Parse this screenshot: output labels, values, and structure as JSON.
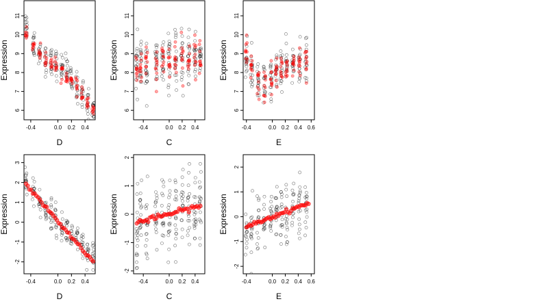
{
  "chart_data": [
    {
      "type": "scatter",
      "xlabel": "D",
      "ylabel": "Expression",
      "xlim": [
        -0.5,
        0.55
      ],
      "ylim": [
        5.5,
        11.8
      ],
      "xticks": [
        -0.4,
        0.0,
        0.2,
        0.4
      ],
      "xtick_labels": [
        "-0.4",
        "0.0",
        "0.2",
        "0.4"
      ],
      "yticks": [
        6,
        7,
        8,
        9,
        10,
        11
      ],
      "ytick_labels": [
        "6",
        "7",
        "8",
        "9",
        "10",
        "11"
      ],
      "series": [
        {
          "kind": "observed",
          "color": "#000000",
          "x_groups": [
            -0.47,
            -0.36,
            -0.27,
            -0.18,
            -0.1,
            -0.03,
            0.06,
            0.13,
            0.2,
            0.28,
            0.36,
            0.44,
            0.52
          ],
          "y_means": [
            10.5,
            9.6,
            9.1,
            8.7,
            8.5,
            8.4,
            8.3,
            8.2,
            7.5,
            7.2,
            6.9,
            6.4,
            6.1
          ],
          "y_spread": 0.7,
          "n_per_group": 14
        },
        {
          "kind": "fitted",
          "color": "#ff0000",
          "x_groups": [
            -0.47,
            -0.36,
            -0.27,
            -0.18,
            -0.1,
            -0.03,
            0.06,
            0.13,
            0.2,
            0.28,
            0.36,
            0.44,
            0.52
          ],
          "y_means": [
            10.0,
            9.5,
            9.0,
            8.7,
            8.5,
            8.3,
            8.1,
            7.8,
            7.5,
            7.2,
            6.8,
            6.4,
            6.0
          ],
          "y_spread": 0.35,
          "n_per_group": 8
        }
      ]
    },
    {
      "type": "scatter",
      "xlabel": "C",
      "ylabel": "Expression",
      "xlim": [
        -0.55,
        0.55
      ],
      "ylim": [
        5.5,
        11.8
      ],
      "xticks": [
        -0.4,
        0.0,
        0.2,
        0.4
      ],
      "xtick_labels": [
        "-0.4",
        "0.0",
        "0.2",
        "0.4"
      ],
      "yticks": [
        6,
        7,
        8,
        9,
        10,
        11
      ],
      "ytick_labels": [
        "6",
        "7",
        "8",
        "9",
        "10",
        "11"
      ],
      "series": [
        {
          "kind": "observed",
          "color": "#000000",
          "x_groups": [
            -0.5,
            -0.44,
            -0.35,
            -0.2,
            -0.1,
            0.0,
            0.1,
            0.2,
            0.3,
            0.4,
            0.48
          ],
          "y_means": [
            8.3,
            8.4,
            8.3,
            8.4,
            8.5,
            8.5,
            8.6,
            8.6,
            8.7,
            8.8,
            8.9
          ],
          "y_spread": 1.3,
          "n_per_group": 18
        },
        {
          "kind": "fitted",
          "color": "#ff0000",
          "x_groups": [
            -0.5,
            -0.44,
            -0.35,
            -0.2,
            -0.1,
            0.0,
            0.1,
            0.2,
            0.3,
            0.4,
            0.48
          ],
          "y_means": [
            8.2,
            8.3,
            8.3,
            8.4,
            8.5,
            8.5,
            8.6,
            8.6,
            8.7,
            8.8,
            8.9
          ],
          "y_spread": 0.9,
          "n_per_group": 10
        }
      ]
    },
    {
      "type": "scatter",
      "xlabel": "E",
      "ylabel": "Expression",
      "xlim": [
        -0.45,
        0.65
      ],
      "ylim": [
        5.5,
        11.8
      ],
      "xticks": [
        -0.4,
        0.0,
        0.2,
        0.4,
        0.6
      ],
      "xtick_labels": [
        "-0.4",
        "0.0",
        "0.2",
        "0.4",
        "0.6"
      ],
      "yticks": [
        6,
        7,
        8,
        9,
        10,
        11
      ],
      "ytick_labels": [
        "6",
        "7",
        "8",
        "9",
        "10",
        "11"
      ],
      "series": [
        {
          "kind": "observed",
          "color": "#000000",
          "x_groups": [
            -0.4,
            -0.32,
            -0.22,
            -0.12,
            -0.02,
            0.06,
            0.14,
            0.22,
            0.32,
            0.42,
            0.52
          ],
          "y_means": [
            8.6,
            8.2,
            7.6,
            7.4,
            7.6,
            8.0,
            8.3,
            8.3,
            8.4,
            8.6,
            8.7
          ],
          "y_spread": 1.0,
          "n_per_group": 16
        },
        {
          "kind": "fitted",
          "color": "#ff0000",
          "x_groups": [
            -0.4,
            -0.32,
            -0.22,
            -0.12,
            -0.02,
            0.06,
            0.14,
            0.22,
            0.32,
            0.42,
            0.52
          ],
          "y_means": [
            9.0,
            8.2,
            7.5,
            7.3,
            7.5,
            8.0,
            8.3,
            8.2,
            8.4,
            8.6,
            8.7
          ],
          "y_spread": 0.8,
          "n_per_group": 10
        }
      ]
    },
    {
      "type": "scatter",
      "xlabel": "D",
      "ylabel": "Expression",
      "xlim": [
        -0.5,
        0.55
      ],
      "ylim": [
        -2.6,
        3.4
      ],
      "xticks": [
        -0.4,
        0.0,
        0.2,
        0.4
      ],
      "xtick_labels": [
        "-0.4",
        "0.0",
        "0.2",
        "0.4"
      ],
      "yticks": [
        -2,
        -1,
        0,
        1,
        2,
        3
      ],
      "ytick_labels": [
        "-2",
        "-1",
        "0",
        "1",
        "2",
        "3"
      ],
      "series": [
        {
          "kind": "observed",
          "color": "#000000",
          "x_groups": [
            -0.47,
            -0.36,
            -0.27,
            -0.18,
            -0.1,
            -0.03,
            0.06,
            0.13,
            0.2,
            0.28,
            0.36,
            0.44,
            0.52
          ],
          "y_means": [
            2.2,
            1.5,
            1.0,
            0.6,
            0.3,
            0.2,
            -0.2,
            -0.4,
            -0.7,
            -1.0,
            -1.3,
            -1.7,
            -1.9
          ],
          "y_spread": 0.7,
          "n_per_group": 14
        },
        {
          "kind": "fitted_line",
          "color": "#ff0000",
          "x_start": -0.47,
          "x_end": 0.52,
          "y_start": 1.9,
          "y_end": -2.0,
          "n_points": 40
        }
      ]
    },
    {
      "type": "scatter",
      "xlabel": "C",
      "ylabel": "Expression",
      "xlim": [
        -0.55,
        0.55
      ],
      "ylim": [
        -2.1,
        2.1
      ],
      "xticks": [
        -0.4,
        0.0,
        0.2,
        0.4
      ],
      "xtick_labels": [
        "-0.4",
        "0.0",
        "0.2",
        "0.4"
      ],
      "yticks": [
        -2,
        -1,
        0,
        1,
        2
      ],
      "ytick_labels": [
        "-2",
        "-1",
        "0",
        "1",
        "2"
      ],
      "series": [
        {
          "kind": "observed",
          "color": "#000000",
          "x_groups": [
            -0.5,
            -0.44,
            -0.35,
            -0.2,
            -0.1,
            0.0,
            0.1,
            0.2,
            0.3,
            0.4,
            0.48
          ],
          "y_means": [
            -0.3,
            -0.25,
            -0.2,
            -0.15,
            -0.1,
            0.0,
            0.05,
            0.1,
            0.2,
            0.25,
            0.3
          ],
          "y_spread": 1.3,
          "n_per_group": 18
        },
        {
          "kind": "fitted_line",
          "color": "#ff0000",
          "x_start": -0.5,
          "x_end": 0.48,
          "y_start": -0.3,
          "y_end": 0.3,
          "n_points": 40
        }
      ]
    },
    {
      "type": "scatter",
      "xlabel": "E",
      "ylabel": "Expression",
      "xlim": [
        -0.45,
        0.65
      ],
      "ylim": [
        -2.3,
        2.5
      ],
      "xticks": [
        -0.4,
        0.0,
        0.2,
        0.4,
        0.6
      ],
      "xtick_labels": [
        "-0.4",
        "0.0",
        "0.2",
        "0.4",
        "0.6"
      ],
      "yticks": [
        -2,
        -1,
        0,
        1,
        2
      ],
      "ytick_labels": [
        "-2",
        "-1",
        "0",
        "1",
        "2"
      ],
      "series": [
        {
          "kind": "observed",
          "color": "#000000",
          "x_groups": [
            -0.4,
            -0.32,
            -0.22,
            -0.12,
            -0.02,
            0.06,
            0.14,
            0.22,
            0.32,
            0.42,
            0.52
          ],
          "y_means": [
            -0.5,
            -0.4,
            -0.3,
            -0.2,
            -0.1,
            0.0,
            0.1,
            0.2,
            0.3,
            0.45,
            0.55
          ],
          "y_spread": 1.1,
          "n_per_group": 16
        },
        {
          "kind": "fitted_line",
          "color": "#ff0000",
          "x_start": -0.4,
          "x_end": 0.56,
          "y_start": -0.4,
          "y_end": 0.55,
          "n_points": 40
        }
      ]
    }
  ]
}
